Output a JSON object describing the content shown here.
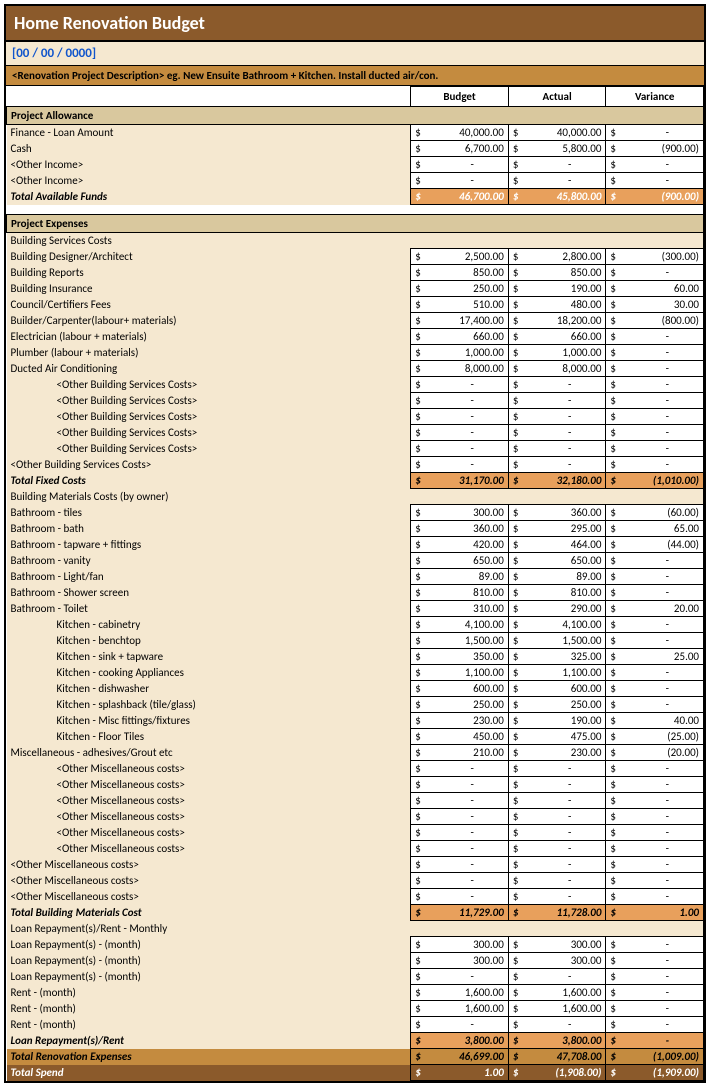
{
  "title": "Home Renovation Budget",
  "date": "[00 / 00 / 0000]",
  "description": "<Renovation Project Description> eg. New Ensuite Bathroom + Kitchen. Install ducted air/con.",
  "columns": {
    "budget": "Budget",
    "actual": "Actual",
    "variance": "Variance"
  },
  "currency": "$",
  "dash": "-",
  "colors": {
    "title_bg": "#8b5a2b",
    "desc_bg": "#c48b3f",
    "sect_bg": "#d9c89e",
    "body_bg": "#f5e8d0",
    "total_bg": "#e8a05c",
    "border": "#000000"
  },
  "sections": [
    {
      "header": "Project Allowance",
      "rows": [
        {
          "label": "Finance - Loan Amount",
          "b": "40,000.00",
          "a": "40,000.00",
          "v": "-"
        },
        {
          "label": "Cash",
          "b": "6,700.00",
          "a": "5,800.00",
          "v": "(900.00)"
        },
        {
          "label": "<Other Income>",
          "b": "-",
          "a": "-",
          "v": "-"
        },
        {
          "label": "<Other Income>",
          "b": "-",
          "a": "-",
          "v": "-"
        }
      ],
      "total": {
        "label": "Total Available Funds",
        "b": "46,700.00",
        "a": "45,800.00",
        "v": "(900.00)",
        "style": "funds"
      }
    },
    {
      "header": "Project Expenses",
      "subheader": "Building Services Costs",
      "rows": [
        {
          "label": "Building Designer/Architect",
          "b": "2,500.00",
          "a": "2,800.00",
          "v": "(300.00)"
        },
        {
          "label": "Building Reports",
          "b": "850.00",
          "a": "850.00",
          "v": "-"
        },
        {
          "label": "Building Insurance",
          "b": "250.00",
          "a": "190.00",
          "v": "60.00"
        },
        {
          "label": "Council/Certifiers Fees",
          "b": "510.00",
          "a": "480.00",
          "v": "30.00"
        },
        {
          "label": "Builder/Carpenter(labour+ materials)",
          "b": "17,400.00",
          "a": "18,200.00",
          "v": "(800.00)"
        },
        {
          "label": "Electrician (labour + materials)",
          "b": "660.00",
          "a": "660.00",
          "v": "-"
        },
        {
          "label": "Plumber (labour + materials)",
          "b": "1,000.00",
          "a": "1,000.00",
          "v": "-"
        },
        {
          "label": "Ducted Air Conditioning",
          "b": "8,000.00",
          "a": "8,000.00",
          "v": "-"
        },
        {
          "label": "<Other Building Services Costs>",
          "b": "-",
          "a": "-",
          "v": "-",
          "indent": 1
        },
        {
          "label": "<Other Building Services Costs>",
          "b": "-",
          "a": "-",
          "v": "-",
          "indent": 1
        },
        {
          "label": "<Other Building Services Costs>",
          "b": "-",
          "a": "-",
          "v": "-",
          "indent": 1
        },
        {
          "label": "<Other Building Services Costs>",
          "b": "-",
          "a": "-",
          "v": "-",
          "indent": 1
        },
        {
          "label": "<Other Building Services Costs>",
          "b": "-",
          "a": "-",
          "v": "-",
          "indent": 1
        },
        {
          "label": "<Other Building Services Costs>",
          "b": "-",
          "a": "-",
          "v": "-"
        }
      ],
      "total": {
        "label": "Total Fixed Costs",
        "b": "31,170.00",
        "a": "32,180.00",
        "v": "(1,010.00)",
        "style": "orange"
      }
    },
    {
      "subheader": "Building Materials Costs (by owner)",
      "rows": [
        {
          "label": "Bathroom - tiles",
          "b": "300.00",
          "a": "360.00",
          "v": "(60.00)"
        },
        {
          "label": "Bathroom - bath",
          "b": "360.00",
          "a": "295.00",
          "v": "65.00"
        },
        {
          "label": "Bathroom - tapware + fittings",
          "b": "420.00",
          "a": "464.00",
          "v": "(44.00)"
        },
        {
          "label": "Bathroom - vanity",
          "b": "650.00",
          "a": "650.00",
          "v": "-"
        },
        {
          "label": "Bathroom - Light/fan",
          "b": "89.00",
          "a": "89.00",
          "v": "-"
        },
        {
          "label": "Bathroom - Shower screen",
          "b": "810.00",
          "a": "810.00",
          "v": "-"
        },
        {
          "label": "Bathroom - Toilet",
          "b": "310.00",
          "a": "290.00",
          "v": "20.00"
        },
        {
          "label": "Kitchen - cabinetry",
          "b": "4,100.00",
          "a": "4,100.00",
          "v": "-",
          "indent": 1
        },
        {
          "label": "Kitchen - benchtop",
          "b": "1,500.00",
          "a": "1,500.00",
          "v": "-",
          "indent": 1
        },
        {
          "label": "Kitchen - sink + tapware",
          "b": "350.00",
          "a": "325.00",
          "v": "25.00",
          "indent": 1
        },
        {
          "label": "Kitchen - cooking Appliances",
          "b": "1,100.00",
          "a": "1,100.00",
          "v": "-",
          "indent": 1
        },
        {
          "label": "Kitchen - dishwasher",
          "b": "600.00",
          "a": "600.00",
          "v": "-",
          "indent": 1
        },
        {
          "label": "Kitchen - splashback (tile/glass)",
          "b": "250.00",
          "a": "250.00",
          "v": "-",
          "indent": 1
        },
        {
          "label": "Kitchen - Misc fittings/fixtures",
          "b": "230.00",
          "a": "190.00",
          "v": "40.00",
          "indent": 1
        },
        {
          "label": "Kitchen - Floor Tiles",
          "b": "450.00",
          "a": "475.00",
          "v": "(25.00)",
          "indent": 1
        },
        {
          "label": "Miscellaneous - adhesives/Grout etc",
          "b": "210.00",
          "a": "230.00",
          "v": "(20.00)"
        },
        {
          "label": "<Other Miscellaneous costs>",
          "b": "-",
          "a": "-",
          "v": "-",
          "indent": 1
        },
        {
          "label": "<Other Miscellaneous costs>",
          "b": "-",
          "a": "-",
          "v": "-",
          "indent": 1
        },
        {
          "label": "<Other Miscellaneous costs>",
          "b": "-",
          "a": "-",
          "v": "-",
          "indent": 1
        },
        {
          "label": "<Other Miscellaneous costs>",
          "b": "-",
          "a": "-",
          "v": "-",
          "indent": 1
        },
        {
          "label": "<Other Miscellaneous costs>",
          "b": "-",
          "a": "-",
          "v": "-",
          "indent": 1
        },
        {
          "label": "<Other Miscellaneous costs>",
          "b": "-",
          "a": "-",
          "v": "-",
          "indent": 1
        },
        {
          "label": "<Other Miscellaneous costs>",
          "b": "-",
          "a": "-",
          "v": "-"
        },
        {
          "label": "<Other Miscellaneous costs>",
          "b": "-",
          "a": "-",
          "v": "-"
        },
        {
          "label": "<Other Miscellaneous costs>",
          "b": "-",
          "a": "-",
          "v": "-"
        }
      ],
      "total": {
        "label": "Total Building Materials Cost",
        "b": "11,729.00",
        "a": "11,728.00",
        "v": "1.00",
        "style": "orange"
      }
    },
    {
      "subheader": "Loan Repayment(s)/Rent - Monthly",
      "rows": [
        {
          "label": "Loan Repayment(s) - (month)",
          "b": "300.00",
          "a": "300.00",
          "v": "-"
        },
        {
          "label": "Loan Repayment(s) - (month)",
          "b": "300.00",
          "a": "300.00",
          "v": "-"
        },
        {
          "label": "Loan Repayment(s) - (month)",
          "b": "-",
          "a": "-",
          "v": "-"
        },
        {
          "label": "Rent - (month)",
          "b": "1,600.00",
          "a": "1,600.00",
          "v": "-"
        },
        {
          "label": "Rent - (month)",
          "b": "1,600.00",
          "a": "1,600.00",
          "v": "-"
        },
        {
          "label": "Rent - (month)",
          "b": "-",
          "a": "-",
          "v": "-"
        }
      ],
      "totals": [
        {
          "label": "Loan Repayment(s)/Rent",
          "b": "3,800.00",
          "a": "3,800.00",
          "v": "-",
          "style": "orange"
        },
        {
          "label": "Total Renovation Expenses",
          "b": "46,699.00",
          "a": "47,708.00",
          "v": "(1,009.00)",
          "style": "dark"
        },
        {
          "label": "Total Spend",
          "b": "1.00",
          "a": "(1,908.00)",
          "v": "(1,909.00)",
          "style": "brown"
        }
      ]
    }
  ]
}
